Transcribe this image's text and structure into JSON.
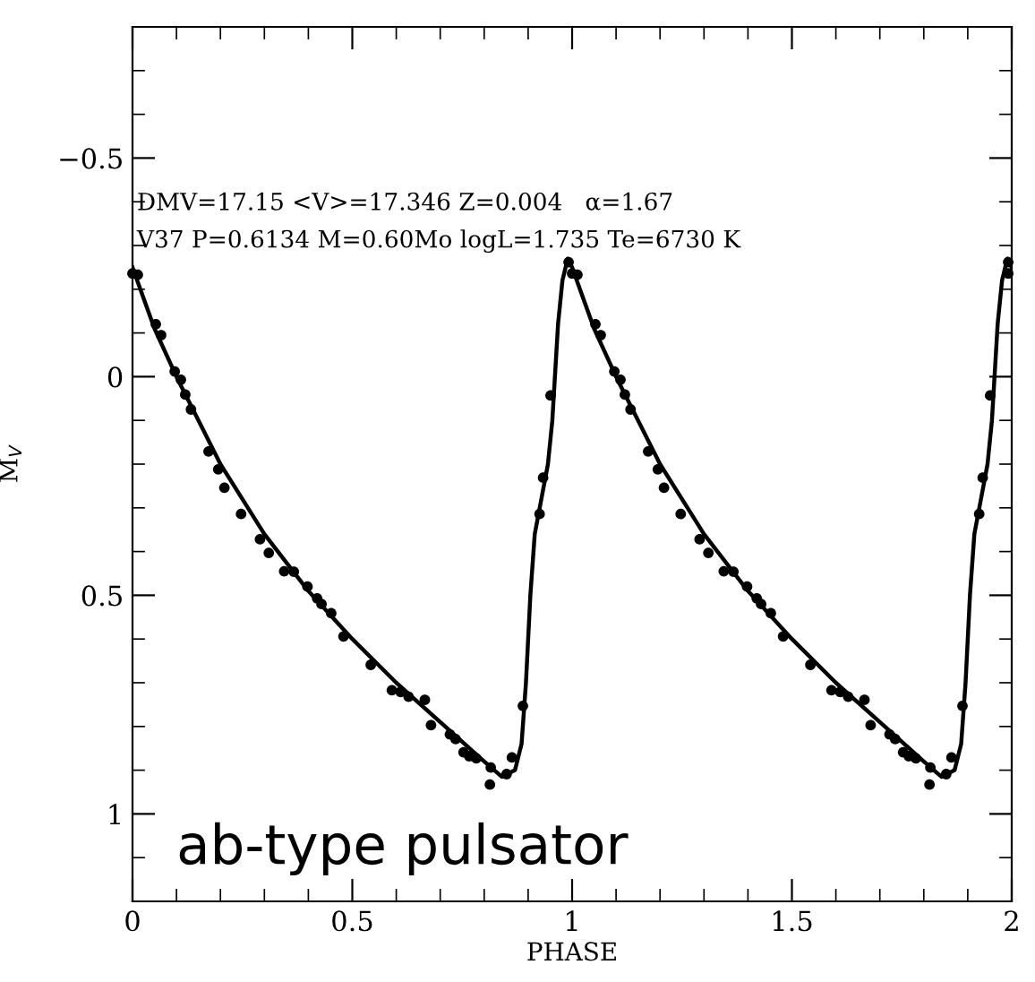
{
  "chart_data": {
    "type": "scatter",
    "xlabel": "PHASE",
    "ylabel": "M$_{V}$",
    "xlim": [
      0,
      2
    ],
    "ylim": [
      1.2,
      -0.8
    ],
    "xticks": [
      0,
      {
        "value": 0.1,
        "label": null
      },
      {
        "value": 0.2,
        "label": null
      },
      {
        "value": 0.3,
        "label": null
      },
      {
        "value": 0.4,
        "label": null
      },
      0.5,
      {
        "value": 0.6,
        "label": null
      },
      {
        "value": 0.7,
        "label": null
      },
      {
        "value": 0.8,
        "label": null
      },
      {
        "value": 0.9,
        "label": null
      },
      1,
      {
        "value": 1.1,
        "label": null
      },
      {
        "value": 1.2,
        "label": null
      },
      {
        "value": 1.3,
        "label": null
      },
      {
        "value": 1.4,
        "label": null
      },
      1.5,
      {
        "value": 1.6,
        "label": null
      },
      {
        "value": 1.7,
        "label": null
      },
      {
        "value": 1.8,
        "label": null
      },
      {
        "value": 1.9,
        "label": null
      },
      2
    ],
    "yticks": [
      {
        "value": -0.7,
        "label": null
      },
      {
        "value": -0.6,
        "label": null
      },
      {
        "value": -0.5,
        "label": "−0.5"
      },
      {
        "value": -0.4,
        "label": null
      },
      {
        "value": -0.3,
        "label": null
      },
      {
        "value": -0.2,
        "label": null
      },
      {
        "value": -0.1,
        "label": null
      },
      0,
      {
        "value": 0.1,
        "label": null
      },
      {
        "value": 0.2,
        "label": null
      },
      {
        "value": 0.3,
        "label": null
      },
      {
        "value": 0.4,
        "label": null
      },
      0.5,
      {
        "value": 0.6,
        "label": null
      },
      {
        "value": 0.7,
        "label": null
      },
      {
        "value": 0.8,
        "label": null
      },
      {
        "value": 0.9,
        "label": null
      },
      1,
      {
        "value": 1.1,
        "label": null
      }
    ],
    "grid": false,
    "legend": false,
    "annotations": [
      "DMV=17.15 <V>=17.346 Z=0.004   α=1.67",
      "V37 P=0.6134 M=0.60Mo logL=1.735 Te=6730 K",
      "ab-type pulsator"
    ],
    "series": [
      {
        "type": "line",
        "color": "#000000",
        "line_style": "solid",
        "marker": "none",
        "x": [
          0,
          0.05,
          0.1,
          0.15,
          0.2,
          0.3,
          0.4,
          0.5,
          0.6,
          0.7,
          0.8,
          0.84,
          0.87,
          0.885,
          0.895,
          0.905,
          0.915,
          0.93,
          0.945,
          0.955,
          0.968,
          0.978,
          0.99,
          1,
          1.05,
          1.1,
          1.15,
          1.2,
          1.3,
          1.4,
          1.5,
          1.6,
          1.7,
          1.8,
          1.84,
          1.87,
          1.885,
          1.895,
          1.905,
          1.915,
          1.93,
          1.945,
          1.955,
          1.968,
          1.978,
          1.99,
          2
        ],
        "values": [
          -0.25,
          -0.11,
          0,
          0.1,
          0.2,
          0.36,
          0.49,
          0.6,
          0.7,
          0.79,
          0.88,
          0.915,
          0.9,
          0.84,
          0.7,
          0.5,
          0.36,
          0.28,
          0.2,
          0.1,
          -0.12,
          -0.22,
          -0.27,
          -0.25,
          -0.11,
          0,
          0.1,
          0.2,
          0.36,
          0.49,
          0.6,
          0.7,
          0.79,
          0.88,
          0.915,
          0.9,
          0.84,
          0.7,
          0.5,
          0.36,
          0.28,
          0.2,
          0.1,
          -0.12,
          -0.22,
          -0.27,
          -0.25
        ]
      },
      {
        "color": "#000000",
        "marker": "circle",
        "x": [
          0,
          0.012,
          0.053,
          0.065,
          0.096,
          0.11,
          0.12,
          0.133,
          0.173,
          0.195,
          0.209,
          0.247,
          0.29,
          0.31,
          0.345,
          0.367,
          0.398,
          0.42,
          0.43,
          0.452,
          0.48,
          0.542,
          0.59,
          0.61,
          0.628,
          0.665,
          0.679,
          0.722,
          0.735,
          0.753,
          0.766,
          0.782,
          0.815,
          0.813,
          0.851,
          0.863,
          0.888,
          0.926,
          0.934,
          0.951,
          0.992,
          1,
          1.012,
          1.053,
          1.065,
          1.096,
          1.11,
          1.12,
          1.133,
          1.173,
          1.195,
          1.209,
          1.247,
          1.29,
          1.31,
          1.345,
          1.367,
          1.398,
          1.42,
          1.43,
          1.452,
          1.48,
          1.542,
          1.59,
          1.61,
          1.628,
          1.665,
          1.679,
          1.722,
          1.735,
          1.753,
          1.766,
          1.782,
          1.815,
          1.813,
          1.851,
          1.863,
          1.888,
          1.926,
          1.934,
          1.951,
          1.992,
          1.992
        ],
        "values": [
          -0.236,
          -0.233,
          -0.12,
          -0.095,
          -0.012,
          0.007,
          0.041,
          0.075,
          0.171,
          0.212,
          0.254,
          0.314,
          0.372,
          0.403,
          0.445,
          0.446,
          0.48,
          0.507,
          0.52,
          0.541,
          0.594,
          0.659,
          0.717,
          0.721,
          0.732,
          0.739,
          0.797,
          0.818,
          0.829,
          0.859,
          0.868,
          0.873,
          0.894,
          0.933,
          0.909,
          0.871,
          0.753,
          0.314,
          0.231,
          0.043,
          -0.262,
          -0.236,
          -0.233,
          -0.12,
          -0.095,
          -0.012,
          0.007,
          0.041,
          0.075,
          0.171,
          0.212,
          0.254,
          0.314,
          0.372,
          0.403,
          0.445,
          0.446,
          0.48,
          0.507,
          0.52,
          0.541,
          0.594,
          0.659,
          0.717,
          0.721,
          0.732,
          0.739,
          0.797,
          0.818,
          0.829,
          0.859,
          0.868,
          0.873,
          0.894,
          0.933,
          0.909,
          0.871,
          0.753,
          0.314,
          0.231,
          0.043,
          -0.262,
          -0.236
        ]
      }
    ]
  }
}
